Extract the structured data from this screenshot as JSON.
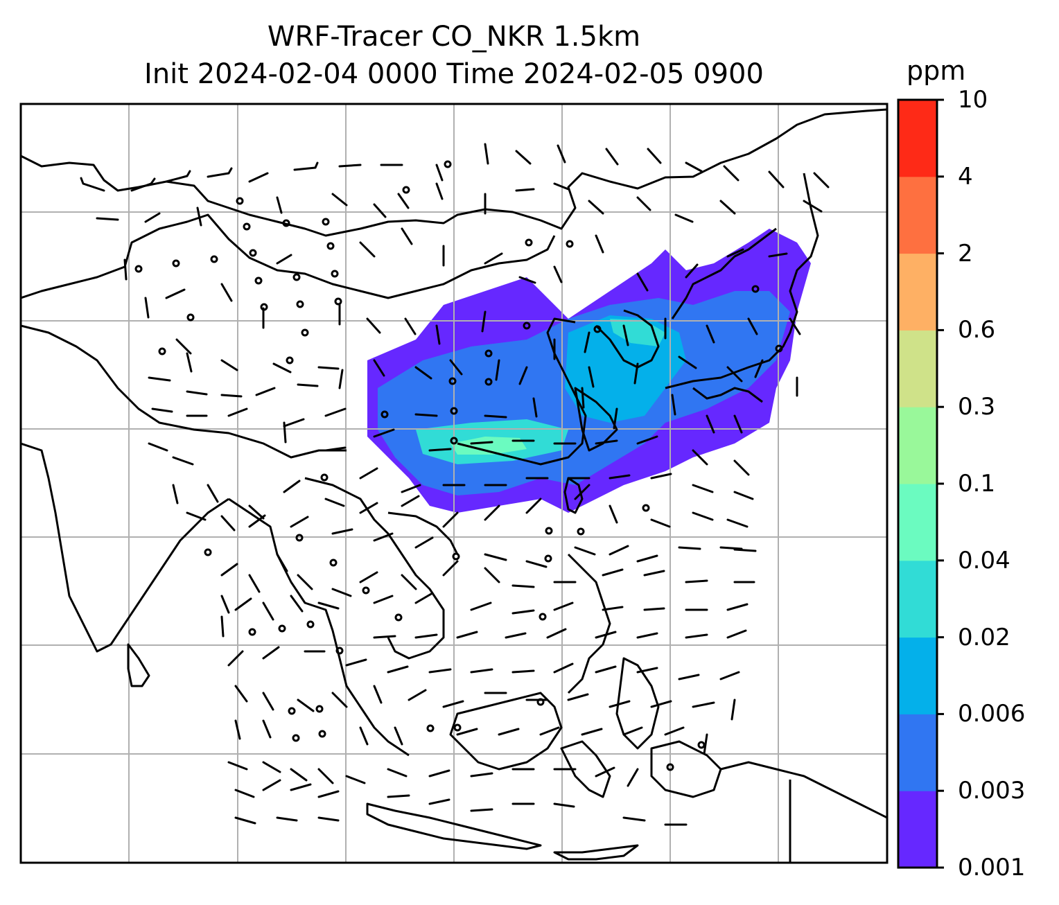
{
  "title": {
    "line1": "WRF-Tracer CO_NKR 1.5km",
    "line2": "Init 2024-02-04 0000 Time 2024-02-05 0900"
  },
  "colorbar": {
    "unit": "ppm",
    "levels": [
      "0.001",
      "0.003",
      "0.006",
      "0.02",
      "0.04",
      "0.1",
      "0.3",
      "0.6",
      "2",
      "4",
      "10"
    ],
    "colors": [
      "#6628ff",
      "#3076f2",
      "#04b0ea",
      "#31dcd6",
      "#6bfbc0",
      "#99f89a",
      "#cfe289",
      "#feb064",
      "#fe7040",
      "#fe2a17"
    ]
  },
  "map": {
    "gridlines": true,
    "field": "CO tracer concentration",
    "overlay": "wind barbs"
  }
}
